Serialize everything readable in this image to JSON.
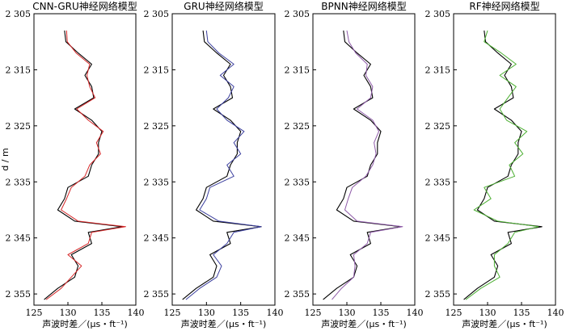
{
  "chart_data": [
    {
      "type": "line",
      "title": "CNN-GRU神经网络模型",
      "xlabel": "声波时差／(μs・ft⁻¹)",
      "ylabel": "d / m",
      "xlim": [
        125,
        140
      ],
      "ylim": [
        2305,
        2357
      ],
      "x_ticks": [
        {
          "value": 125,
          "label": "125"
        },
        {
          "value": 130,
          "label": "130"
        },
        {
          "value": 135,
          "label": "135"
        },
        {
          "value": 140,
          "label": "140"
        }
      ],
      "y_ticks": [
        {
          "value": 2305,
          "label": "2 305"
        },
        {
          "value": 2315,
          "label": "2 315"
        },
        {
          "value": 2325,
          "label": "2 325"
        },
        {
          "value": 2335,
          "label": "2 335"
        },
        {
          "value": 2345,
          "label": "2 345"
        },
        {
          "value": 2355,
          "label": "2 355"
        }
      ],
      "series": [
        {
          "color": "#000000",
          "kind": "measured",
          "depth": [
            2308,
            2310,
            2312,
            2314,
            2316,
            2318,
            2320,
            2322,
            2324,
            2326,
            2328,
            2330,
            2332,
            2334,
            2336,
            2338,
            2340,
            2342,
            2343,
            2344,
            2346,
            2348,
            2350,
            2352,
            2354,
            2356
          ],
          "values": [
            129.5,
            129.7,
            131.5,
            133.5,
            132.5,
            133.5,
            133.8,
            131.0,
            133.5,
            135.0,
            134.5,
            134.5,
            133.5,
            133.0,
            130.0,
            129.5,
            128.5,
            131.0,
            138.0,
            133.0,
            133.5,
            130.5,
            131.5,
            131.0,
            128.5,
            126.5
          ]
        },
        {
          "color": "#d62728",
          "kind": "predicted",
          "depth": [
            2308,
            2310,
            2312,
            2314,
            2316,
            2318,
            2320,
            2322,
            2324,
            2326,
            2328,
            2330,
            2332,
            2334,
            2336,
            2338,
            2340,
            2342,
            2343,
            2344,
            2346,
            2348,
            2350,
            2352,
            2354,
            2356
          ],
          "values": [
            129.8,
            129.9,
            131.2,
            133.2,
            132.8,
            133.2,
            134.0,
            131.3,
            133.0,
            135.2,
            134.2,
            134.8,
            133.2,
            132.5,
            130.5,
            129.8,
            129.0,
            131.5,
            138.5,
            133.5,
            133.0,
            130.0,
            132.0,
            130.5,
            129.0,
            126.8
          ]
        }
      ]
    },
    {
      "type": "line",
      "title": "GRU神经网络模型",
      "xlabel": "声波时差／(μs・ft⁻¹)",
      "xlim": [
        125,
        140
      ],
      "ylim": [
        2305,
        2357
      ],
      "x_ticks": [
        {
          "value": 125,
          "label": "125"
        },
        {
          "value": 130,
          "label": "130"
        },
        {
          "value": 135,
          "label": "135"
        },
        {
          "value": 140,
          "label": "140"
        }
      ],
      "y_ticks": [
        {
          "value": 2305,
          "label": "2 305"
        },
        {
          "value": 2315,
          "label": "2 315"
        },
        {
          "value": 2325,
          "label": "2 325"
        },
        {
          "value": 2335,
          "label": "2 335"
        },
        {
          "value": 2345,
          "label": "2 345"
        },
        {
          "value": 2355,
          "label": "2 355"
        }
      ],
      "series": [
        {
          "color": "#000000",
          "kind": "measured",
          "depth": [
            2308,
            2310,
            2312,
            2314,
            2316,
            2318,
            2320,
            2322,
            2324,
            2326,
            2328,
            2330,
            2332,
            2334,
            2336,
            2338,
            2340,
            2342,
            2343,
            2344,
            2346,
            2348,
            2350,
            2352,
            2354,
            2356
          ],
          "values": [
            129.5,
            129.7,
            131.5,
            133.5,
            132.5,
            133.5,
            133.8,
            131.0,
            133.5,
            135.0,
            134.5,
            134.5,
            133.5,
            133.0,
            130.0,
            129.5,
            128.5,
            131.0,
            138.0,
            133.0,
            133.5,
            130.5,
            131.5,
            131.0,
            128.5,
            126.5
          ]
        },
        {
          "color": "#3b3f9e",
          "kind": "predicted",
          "depth": [
            2308,
            2310,
            2312,
            2314,
            2316,
            2318,
            2320,
            2322,
            2324,
            2326,
            2328,
            2330,
            2332,
            2334,
            2336,
            2338,
            2340,
            2342,
            2343,
            2344,
            2346,
            2348,
            2350,
            2352,
            2354,
            2356
          ],
          "values": [
            130.0,
            130.2,
            131.8,
            134.0,
            132.0,
            134.0,
            133.2,
            131.5,
            133.0,
            135.5,
            134.0,
            135.0,
            133.0,
            134.0,
            130.5,
            130.0,
            129.0,
            131.8,
            138.0,
            134.0,
            133.0,
            131.0,
            132.2,
            131.5,
            129.0,
            127.0
          ]
        }
      ]
    },
    {
      "type": "line",
      "title": "BPNN神经网络模型",
      "xlabel": "声波时差／(μs・ft⁻¹)",
      "xlim": [
        125,
        140
      ],
      "ylim": [
        2305,
        2357
      ],
      "x_ticks": [
        {
          "value": 125,
          "label": "125"
        },
        {
          "value": 130,
          "label": "130"
        },
        {
          "value": 135,
          "label": "135"
        },
        {
          "value": 140,
          "label": "140"
        }
      ],
      "y_ticks": [
        {
          "value": 2305,
          "label": "2 305"
        },
        {
          "value": 2315,
          "label": "2 315"
        },
        {
          "value": 2325,
          "label": "2 325"
        },
        {
          "value": 2335,
          "label": "2 335"
        },
        {
          "value": 2345,
          "label": "2 345"
        },
        {
          "value": 2355,
          "label": "2 355"
        }
      ],
      "series": [
        {
          "color": "#000000",
          "kind": "measured",
          "depth": [
            2308,
            2310,
            2312,
            2314,
            2316,
            2318,
            2320,
            2322,
            2324,
            2326,
            2328,
            2330,
            2332,
            2334,
            2336,
            2338,
            2340,
            2342,
            2343,
            2344,
            2346,
            2348,
            2350,
            2352,
            2354,
            2356
          ],
          "values": [
            129.5,
            129.7,
            131.5,
            133.5,
            132.5,
            133.5,
            133.8,
            131.0,
            133.5,
            135.0,
            134.5,
            134.5,
            133.5,
            133.0,
            130.0,
            129.5,
            128.5,
            131.0,
            138.0,
            133.0,
            133.5,
            130.5,
            131.5,
            131.0,
            128.5,
            126.5
          ]
        },
        {
          "color": "#8e5aa8",
          "kind": "predicted",
          "depth": [
            2308,
            2310,
            2312,
            2314,
            2316,
            2318,
            2320,
            2322,
            2324,
            2326,
            2328,
            2330,
            2332,
            2334,
            2336,
            2338,
            2340,
            2342,
            2343,
            2344,
            2346,
            2348,
            2350,
            2352,
            2354,
            2356
          ],
          "values": [
            130.0,
            130.3,
            131.3,
            133.0,
            132.8,
            133.8,
            133.5,
            131.5,
            133.8,
            134.7,
            134.0,
            134.3,
            133.8,
            132.8,
            130.8,
            130.2,
            129.7,
            131.5,
            138.2,
            133.5,
            133.0,
            131.0,
            131.2,
            131.0,
            129.2,
            127.8
          ]
        }
      ]
    },
    {
      "type": "line",
      "title": "RF神经网络模型",
      "xlabel": "声波时差／(μs・ft⁻¹)",
      "xlim": [
        125,
        140
      ],
      "ylim": [
        2305,
        2357
      ],
      "x_ticks": [
        {
          "value": 125,
          "label": "125"
        },
        {
          "value": 130,
          "label": "130"
        },
        {
          "value": 135,
          "label": "135"
        },
        {
          "value": 140,
          "label": "140"
        }
      ],
      "y_ticks": [
        {
          "value": 2305,
          "label": "2 305"
        },
        {
          "value": 2315,
          "label": "2 315"
        },
        {
          "value": 2325,
          "label": "2 325"
        },
        {
          "value": 2335,
          "label": "2 335"
        },
        {
          "value": 2345,
          "label": "2 345"
        },
        {
          "value": 2355,
          "label": "2 355"
        }
      ],
      "series": [
        {
          "color": "#000000",
          "kind": "measured",
          "depth": [
            2308,
            2310,
            2312,
            2314,
            2316,
            2318,
            2320,
            2322,
            2324,
            2326,
            2328,
            2330,
            2332,
            2334,
            2336,
            2338,
            2340,
            2342,
            2343,
            2344,
            2346,
            2348,
            2350,
            2352,
            2354,
            2356
          ],
          "values": [
            129.5,
            129.7,
            131.5,
            133.5,
            132.5,
            133.5,
            133.8,
            131.0,
            133.5,
            135.0,
            134.5,
            134.5,
            133.5,
            133.0,
            130.0,
            129.5,
            128.5,
            131.0,
            138.0,
            133.0,
            133.5,
            130.5,
            131.5,
            131.0,
            128.5,
            126.5
          ]
        },
        {
          "color": "#4caf32",
          "kind": "predicted",
          "depth": [
            2308,
            2310,
            2312,
            2314,
            2316,
            2318,
            2320,
            2322,
            2324,
            2326,
            2328,
            2330,
            2332,
            2334,
            2336,
            2338,
            2340,
            2342,
            2343,
            2344,
            2346,
            2348,
            2350,
            2352,
            2354,
            2356
          ],
          "values": [
            130.0,
            129.5,
            132.0,
            134.2,
            131.8,
            134.2,
            133.0,
            131.8,
            132.8,
            135.8,
            134.0,
            135.2,
            133.2,
            134.0,
            129.5,
            130.5,
            128.0,
            131.5,
            137.5,
            134.0,
            133.0,
            131.0,
            131.0,
            131.8,
            129.0,
            126.8
          ]
        }
      ]
    }
  ]
}
